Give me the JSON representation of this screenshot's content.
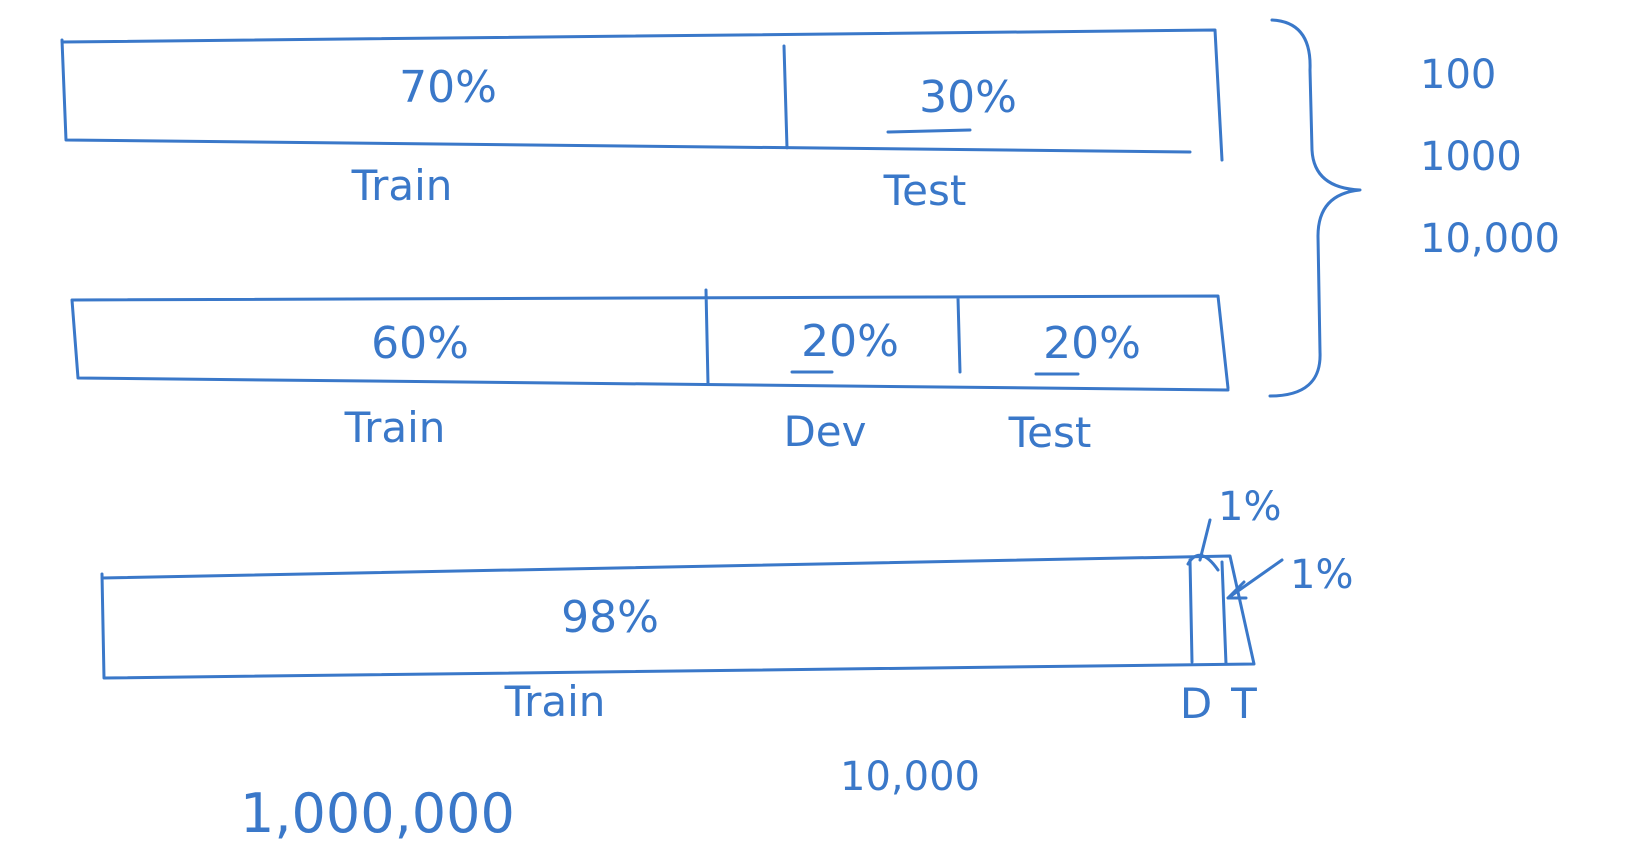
{
  "split_1": {
    "train_pct": "70%",
    "test_pct": "30%",
    "train_label": "Train",
    "test_label": "Test"
  },
  "split_2": {
    "train_pct": "60%",
    "dev_pct": "20%",
    "test_pct": "20%",
    "train_label": "Train",
    "dev_label": "Dev",
    "test_label": "Test"
  },
  "small_data_sizes": [
    "100",
    "1000",
    "10,000"
  ],
  "split_3": {
    "train_pct": "98%",
    "dev_pct": "1%",
    "test_pct": "1%",
    "train_label": "Train",
    "dev_label": "D",
    "test_label": "T",
    "dev_test_size": "10,000",
    "total_size": "1,000,000"
  },
  "colors": {
    "ink": "#3a78c9",
    "background": "#ffffff"
  }
}
